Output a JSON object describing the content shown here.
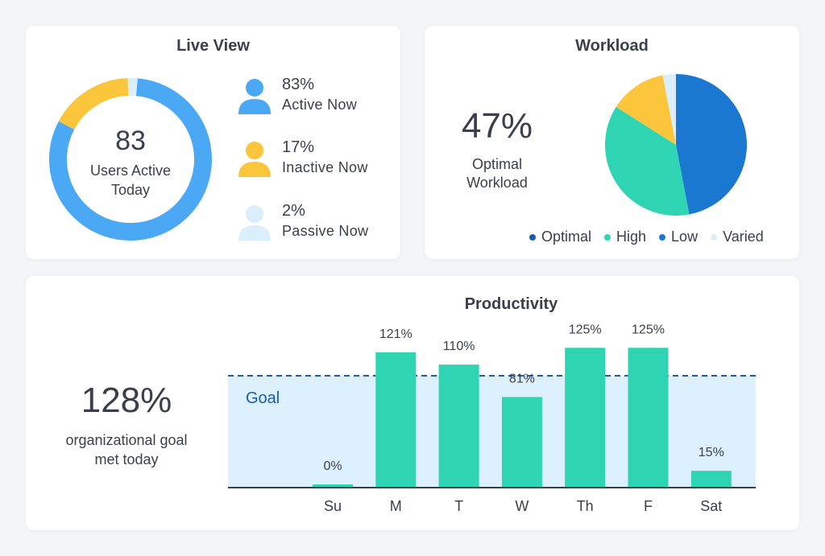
{
  "live_view": {
    "title": "Live View",
    "center_number": "83",
    "center_label_line1": "Users Active",
    "center_label_line2": "Today",
    "stats": [
      {
        "pct": "83%",
        "label": "Active Now",
        "color": "#4aa8f5"
      },
      {
        "pct": "17%",
        "label": "Inactive Now",
        "color": "#fbc53c"
      },
      {
        "pct": "2%",
        "label": "Passive Now",
        "color": "#dbeefc"
      }
    ]
  },
  "workload": {
    "title": "Workload",
    "percent": "47%",
    "label_line1": "Optimal",
    "label_line2": "Workload"
  },
  "productivity": {
    "title": "Productivity",
    "percent": "128%",
    "label_line1": "organizational goal",
    "label_line2": "met today",
    "goal_label": "Goal"
  },
  "chart_data": [
    {
      "type": "pie",
      "variant": "donut",
      "title": "Live View",
      "labels": [
        "Active Now",
        "Inactive Now",
        "Passive Now"
      ],
      "values": [
        83,
        17,
        2
      ],
      "colors": [
        "#4aa8f5",
        "#fbc53c",
        "#dbeefc"
      ]
    },
    {
      "type": "pie",
      "title": "Workload",
      "labels": [
        "Optimal",
        "High",
        "Low",
        "Varied"
      ],
      "values": [
        47,
        37,
        13,
        3
      ],
      "colors": [
        "#1a78d0",
        "#2fd4b2",
        "#fbc53c",
        "#dbeefc"
      ],
      "legend": [
        {
          "name": "Optimal",
          "color": "#1a5cb0"
        },
        {
          "name": "High",
          "color": "#2fd4b2"
        },
        {
          "name": "Low",
          "color": "#1a78d0"
        },
        {
          "name": "Varied",
          "color": "#dbeefc"
        }
      ],
      "legend_position": "bottom"
    },
    {
      "type": "bar",
      "title": "Productivity",
      "categories": [
        "Su",
        "M",
        "T",
        "W",
        "Th",
        "F",
        "Sat"
      ],
      "values": [
        0,
        121,
        110,
        81,
        125,
        125,
        15
      ],
      "value_labels": [
        "0%",
        "121%",
        "110%",
        "81%",
        "125%",
        "125%",
        "15%"
      ],
      "goal": 100,
      "goal_label": "Goal",
      "ylim": [
        0,
        140
      ],
      "bar_color": "#2fd4b2",
      "goal_fill": "#ddf0fd",
      "goal_line_color": "#1a5cb0"
    }
  ]
}
